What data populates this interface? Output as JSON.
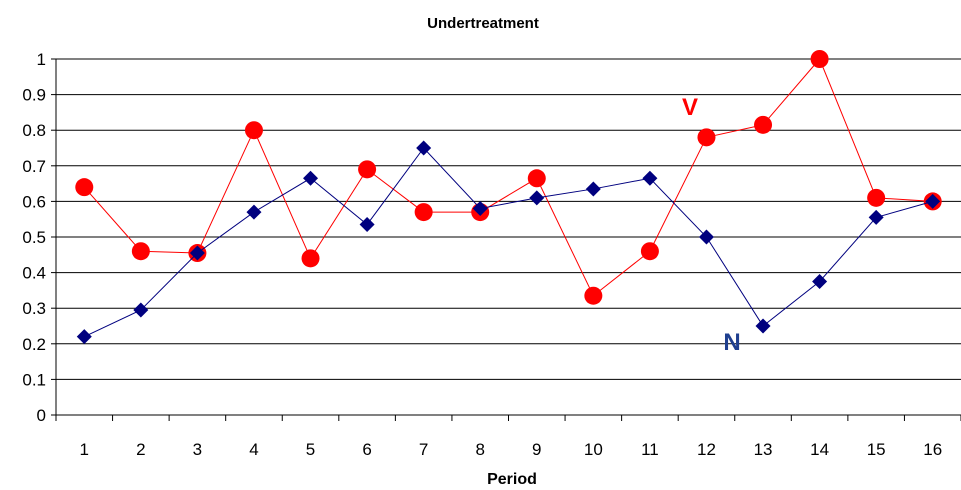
{
  "chart_data": {
    "type": "line",
    "title": "Undertreatment",
    "xlabel": "Period",
    "ylabel": "",
    "x": [
      1,
      2,
      3,
      4,
      5,
      6,
      7,
      8,
      9,
      10,
      11,
      12,
      13,
      14,
      15,
      16
    ],
    "x_tick_labels": [
      "1",
      "2",
      "3",
      "4",
      "5",
      "6",
      "7",
      "8",
      "9",
      "10",
      "11",
      "12",
      "13",
      "14",
      "15",
      "16"
    ],
    "ylim": [
      0,
      1
    ],
    "y_tick_labels": [
      "0",
      "0.1",
      "0.2",
      "0.3",
      "0.4",
      "0.5",
      "0.6",
      "0.7",
      "0.8",
      "0.9",
      "1"
    ],
    "grid": "horizontal",
    "series": [
      {
        "label": "V",
        "marker": "circle",
        "color": "#ff0000",
        "values": [
          0.64,
          0.46,
          0.455,
          0.8,
          0.44,
          0.69,
          0.57,
          0.57,
          0.665,
          0.335,
          0.46,
          0.78,
          0.815,
          1.0,
          0.61,
          0.6
        ]
      },
      {
        "label": "N",
        "marker": "diamond",
        "color": "#00007f",
        "label_color": "#1f3f8f",
        "values": [
          0.22,
          0.295,
          0.455,
          0.57,
          0.665,
          0.535,
          0.75,
          0.58,
          0.61,
          0.635,
          0.665,
          0.5,
          0.25,
          0.375,
          0.555,
          0.6
        ]
      }
    ]
  }
}
